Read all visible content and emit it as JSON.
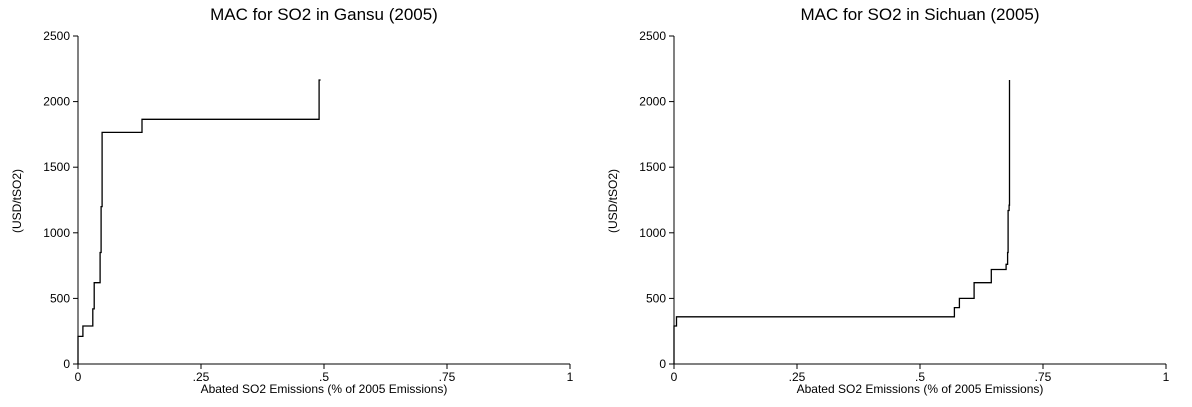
{
  "chart_data": [
    {
      "type": "line",
      "title": "MAC for SO2 in Gansu (2005)",
      "xlabel": "Abated SO2 Emissions (% of 2005 Emissions)",
      "ylabel": "(USD/tSO2)",
      "xlim": [
        0,
        1
      ],
      "ylim": [
        0,
        2500
      ],
      "x_ticks": [
        0,
        0.25,
        0.5,
        0.75,
        1
      ],
      "x_tick_labels": [
        "0",
        ".25",
        ".5",
        ".75",
        "1"
      ],
      "y_ticks": [
        0,
        500,
        1000,
        1500,
        2000,
        2500
      ],
      "y_tick_labels": [
        "0",
        "500",
        "1000",
        "1500",
        "2000",
        "2500"
      ],
      "grid": false,
      "series": [
        {
          "step": true,
          "points": [
            [
              0,
              0
            ],
            [
              0,
              210
            ],
            [
              0.01,
              210
            ],
            [
              0.01,
              290
            ],
            [
              0.03,
              290
            ],
            [
              0.03,
              420
            ],
            [
              0.033,
              420
            ],
            [
              0.033,
              620
            ],
            [
              0.045,
              620
            ],
            [
              0.045,
              850
            ],
            [
              0.047,
              850
            ],
            [
              0.047,
              1200
            ],
            [
              0.049,
              1200
            ],
            [
              0.049,
              1765
            ],
            [
              0.13,
              1765
            ],
            [
              0.13,
              1865
            ],
            [
              0.49,
              1865
            ],
            [
              0.49,
              2165
            ],
            [
              0.493,
              2165
            ]
          ]
        }
      ]
    },
    {
      "type": "line",
      "title": "MAC for SO2 in Sichuan (2005)",
      "xlabel": "Abated SO2 Emissions (% of 2005 Emissions)",
      "ylabel": "(USD/tSO2)",
      "xlim": [
        0,
        1
      ],
      "ylim": [
        0,
        2500
      ],
      "x_ticks": [
        0,
        0.25,
        0.5,
        0.75,
        1
      ],
      "x_tick_labels": [
        "0",
        ".25",
        ".5",
        ".75",
        "1"
      ],
      "y_ticks": [
        0,
        500,
        1000,
        1500,
        2000,
        2500
      ],
      "y_tick_labels": [
        "0",
        "500",
        "1000",
        "1500",
        "2000",
        "2500"
      ],
      "grid": false,
      "series": [
        {
          "step": true,
          "points": [
            [
              0,
              0
            ],
            [
              0,
              290
            ],
            [
              0.005,
              290
            ],
            [
              0.005,
              360
            ],
            [
              0.57,
              360
            ],
            [
              0.57,
              430
            ],
            [
              0.58,
              430
            ],
            [
              0.58,
              500
            ],
            [
              0.61,
              500
            ],
            [
              0.61,
              620
            ],
            [
              0.645,
              620
            ],
            [
              0.645,
              720
            ],
            [
              0.675,
              720
            ],
            [
              0.675,
              760
            ],
            [
              0.678,
              760
            ],
            [
              0.678,
              850
            ],
            [
              0.679,
              850
            ],
            [
              0.679,
              1170
            ],
            [
              0.681,
              1170
            ],
            [
              0.681,
              1210
            ],
            [
              0.682,
              1210
            ],
            [
              0.682,
              2165
            ]
          ]
        }
      ]
    }
  ]
}
